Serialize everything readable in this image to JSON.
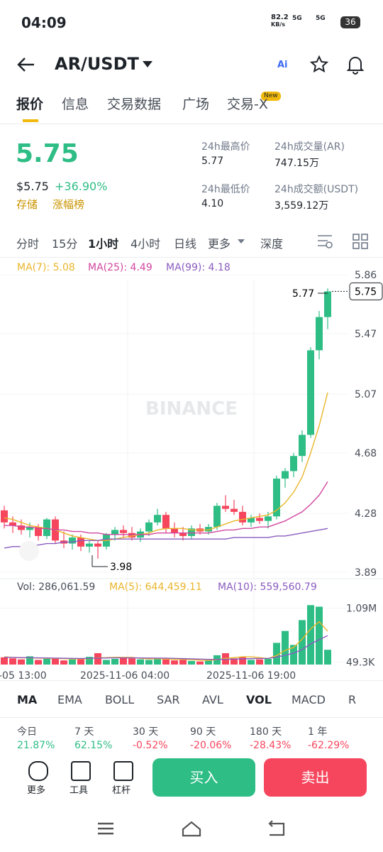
{
  "status": {
    "time": "04:09",
    "speed": "82.2",
    "speed_unit": "KB/s",
    "net1": "5G",
    "net2": "5G",
    "battery": "36"
  },
  "header": {
    "pair": "AR/USDT",
    "ai": "Ai"
  },
  "tabs": [
    "报价",
    "信息",
    "交易数据",
    "广场",
    "交易-X"
  ],
  "tab_badge": "New",
  "price": {
    "last": "5.75",
    "usd": "$5.75",
    "change": "+36.90%",
    "links": [
      "存储",
      "涨幅榜"
    ]
  },
  "stats": [
    {
      "label": "24h最高价",
      "value": "5.77"
    },
    {
      "label": "24h成交量(AR)",
      "value": "747.15万"
    },
    {
      "label": "24h最低价",
      "value": "4.10"
    },
    {
      "label": "24h成交额(USDT)",
      "value": "3,559.12万"
    }
  ],
  "intervals": [
    "分时",
    "15分",
    "1小时",
    "4小时",
    "日线",
    "更多",
    "深度"
  ],
  "chart_data": {
    "type": "candlestick",
    "watermark": "BINANCE",
    "high_label": "5.77",
    "low_label": "3.98",
    "price_label": "5.75",
    "open": [
      4.3,
      4.22,
      4.2,
      4.17,
      4.19,
      4.13,
      4.24,
      4.1,
      4.08,
      4.12,
      4.06,
      4.08,
      4.06,
      4.14,
      4.17,
      4.15,
      4.12,
      4.16,
      4.22,
      4.27,
      4.18,
      4.15,
      4.13,
      4.18,
      4.16,
      4.19,
      4.33,
      4.31,
      4.29,
      4.22,
      4.25,
      4.23,
      4.26,
      4.51,
      4.56,
      4.66,
      4.8,
      5.36,
      5.58
    ],
    "high": [
      4.33,
      4.26,
      4.24,
      4.22,
      4.21,
      4.25,
      4.26,
      4.16,
      4.14,
      4.14,
      4.1,
      4.1,
      4.15,
      4.19,
      4.2,
      4.19,
      4.18,
      4.24,
      4.31,
      4.29,
      4.22,
      4.19,
      4.2,
      4.21,
      4.21,
      4.35,
      4.4,
      4.37,
      4.33,
      4.27,
      4.28,
      4.29,
      4.53,
      4.58,
      4.68,
      4.83,
      5.38,
      5.62,
      5.77
    ],
    "low": [
      4.18,
      4.15,
      4.14,
      4.12,
      4.1,
      4.11,
      4.08,
      4.05,
      4.04,
      4.03,
      4.02,
      3.98,
      4.04,
      4.1,
      4.12,
      4.1,
      4.09,
      4.13,
      4.2,
      4.15,
      4.12,
      4.1,
      4.11,
      4.14,
      4.14,
      4.17,
      4.29,
      4.27,
      4.2,
      4.19,
      4.21,
      4.18,
      4.24,
      4.45,
      4.52,
      4.62,
      4.78,
      5.3,
      5.5
    ],
    "close": [
      4.22,
      4.2,
      4.17,
      4.19,
      4.13,
      4.24,
      4.1,
      4.08,
      4.12,
      4.06,
      4.08,
      4.06,
      4.14,
      4.17,
      4.15,
      4.12,
      4.16,
      4.22,
      4.27,
      4.18,
      4.15,
      4.13,
      4.18,
      4.16,
      4.19,
      4.33,
      4.31,
      4.29,
      4.22,
      4.25,
      4.23,
      4.26,
      4.51,
      4.56,
      4.66,
      4.8,
      5.36,
      5.58,
      5.75
    ],
    "ma_series": [
      {
        "name": "MA(7): 5.08",
        "color": "#e9b52a",
        "values": [
          4.25,
          4.24,
          4.22,
          4.2,
          4.19,
          4.18,
          4.17,
          4.15,
          4.13,
          4.12,
          4.11,
          4.1,
          4.1,
          4.11,
          4.12,
          4.13,
          4.14,
          4.15,
          4.17,
          4.18,
          4.18,
          4.18,
          4.17,
          4.17,
          4.17,
          4.19,
          4.21,
          4.23,
          4.24,
          4.25,
          4.26,
          4.27,
          4.3,
          4.35,
          4.42,
          4.52,
          4.68,
          4.86,
          5.08
        ]
      },
      {
        "name": "MA(25): 4.49",
        "color": "#d1479f",
        "values": [
          4.2,
          4.2,
          4.19,
          4.19,
          4.18,
          4.18,
          4.17,
          4.17,
          4.16,
          4.16,
          4.15,
          4.15,
          4.14,
          4.14,
          4.14,
          4.14,
          4.14,
          4.14,
          4.15,
          4.15,
          4.15,
          4.15,
          4.15,
          4.15,
          4.15,
          4.16,
          4.17,
          4.17,
          4.18,
          4.18,
          4.19,
          4.19,
          4.21,
          4.23,
          4.26,
          4.29,
          4.34,
          4.4,
          4.49
        ]
      },
      {
        "name": "MA(99): 4.18",
        "color": "#8a5cbf",
        "values": [
          4.05,
          4.06,
          4.06,
          4.07,
          4.07,
          4.08,
          4.08,
          4.09,
          4.09,
          4.1,
          4.1,
          4.1,
          4.11,
          4.11,
          4.11,
          4.11,
          4.11,
          4.11,
          4.11,
          4.11,
          4.11,
          4.11,
          4.11,
          4.11,
          4.11,
          4.11,
          4.11,
          4.12,
          4.12,
          4.12,
          4.12,
          4.12,
          4.13,
          4.13,
          4.14,
          4.15,
          4.16,
          4.17,
          4.18
        ]
      }
    ],
    "ylim": [
      3.89,
      5.86
    ],
    "yticks": [
      5.86,
      5.47,
      5.07,
      4.68,
      4.28,
      3.89
    ],
    "volume_label": "Vol: 286,061.59",
    "volume": [
      140000,
      120000,
      100000,
      160000,
      90000,
      110000,
      130000,
      80000,
      100000,
      120000,
      150000,
      220000,
      90000,
      110000,
      140000,
      120000,
      100000,
      90000,
      130000,
      100000,
      80000,
      90000,
      70000,
      60000,
      80000,
      180000,
      220000,
      120000,
      150000,
      90000,
      100000,
      110000,
      420000,
      650000,
      380000,
      860000,
      1150000,
      1120000,
      286061.59
    ],
    "volume_ma_series": [
      {
        "name": "MA(5): 644,459.11",
        "color": "#e9b52a",
        "values": [
          150000,
          140000,
          130000,
          130000,
          125000,
          120000,
          120000,
          115000,
          110000,
          110000,
          115000,
          130000,
          135000,
          140000,
          140000,
          140000,
          120000,
          110000,
          115000,
          110000,
          100000,
          100000,
          95000,
          85000,
          80000,
          95000,
          120000,
          135000,
          150000,
          150000,
          135000,
          115000,
          175000,
          275000,
          330000,
          490000,
          690000,
          830000,
          644459.11
        ]
      },
      {
        "name": "MA(10): 559,560.79",
        "color": "#8a5cbf",
        "values": [
          140000,
          138000,
          135000,
          133000,
          130000,
          128000,
          125000,
          122000,
          120000,
          118000,
          120000,
          125000,
          128000,
          130000,
          130000,
          130000,
          128000,
          126000,
          125000,
          124000,
          120000,
          115000,
          110000,
          105000,
          100000,
          100000,
          102000,
          105000,
          110000,
          115000,
          118000,
          120000,
          145000,
          180000,
          220000,
          290000,
          400000,
          480000,
          559560.79
        ]
      }
    ],
    "vol_ylim": [
      0,
      1250000
    ],
    "vol_yticks": [
      {
        "value": 1090000,
        "label": "1.09M"
      },
      {
        "value": 49300,
        "label": "49.3K"
      }
    ],
    "x_labels": [
      "-05 13:00",
      "2025-11-06 04:00",
      "2025-11-06 19:00"
    ],
    "up_color": "#2ebd85",
    "down_color": "#f6465d"
  },
  "indicators": [
    "MA",
    "EMA",
    "BOLL",
    "SAR",
    "AVL",
    "VOL",
    "MACD",
    "R"
  ],
  "performance": [
    {
      "label": "今日",
      "value": "21.87%"
    },
    {
      "label": "7 天",
      "value": "62.15%"
    },
    {
      "label": "30 天",
      "value": "-0.52%"
    },
    {
      "label": "90 天",
      "value": "-20.06%"
    },
    {
      "label": "180 天",
      "value": "-28.43%"
    },
    {
      "label": "1 年",
      "value": "-62.29%"
    }
  ],
  "bottom": {
    "tools": [
      "更多",
      "工具",
      "杠杆"
    ],
    "buy": "买入",
    "sell": "卖出"
  }
}
